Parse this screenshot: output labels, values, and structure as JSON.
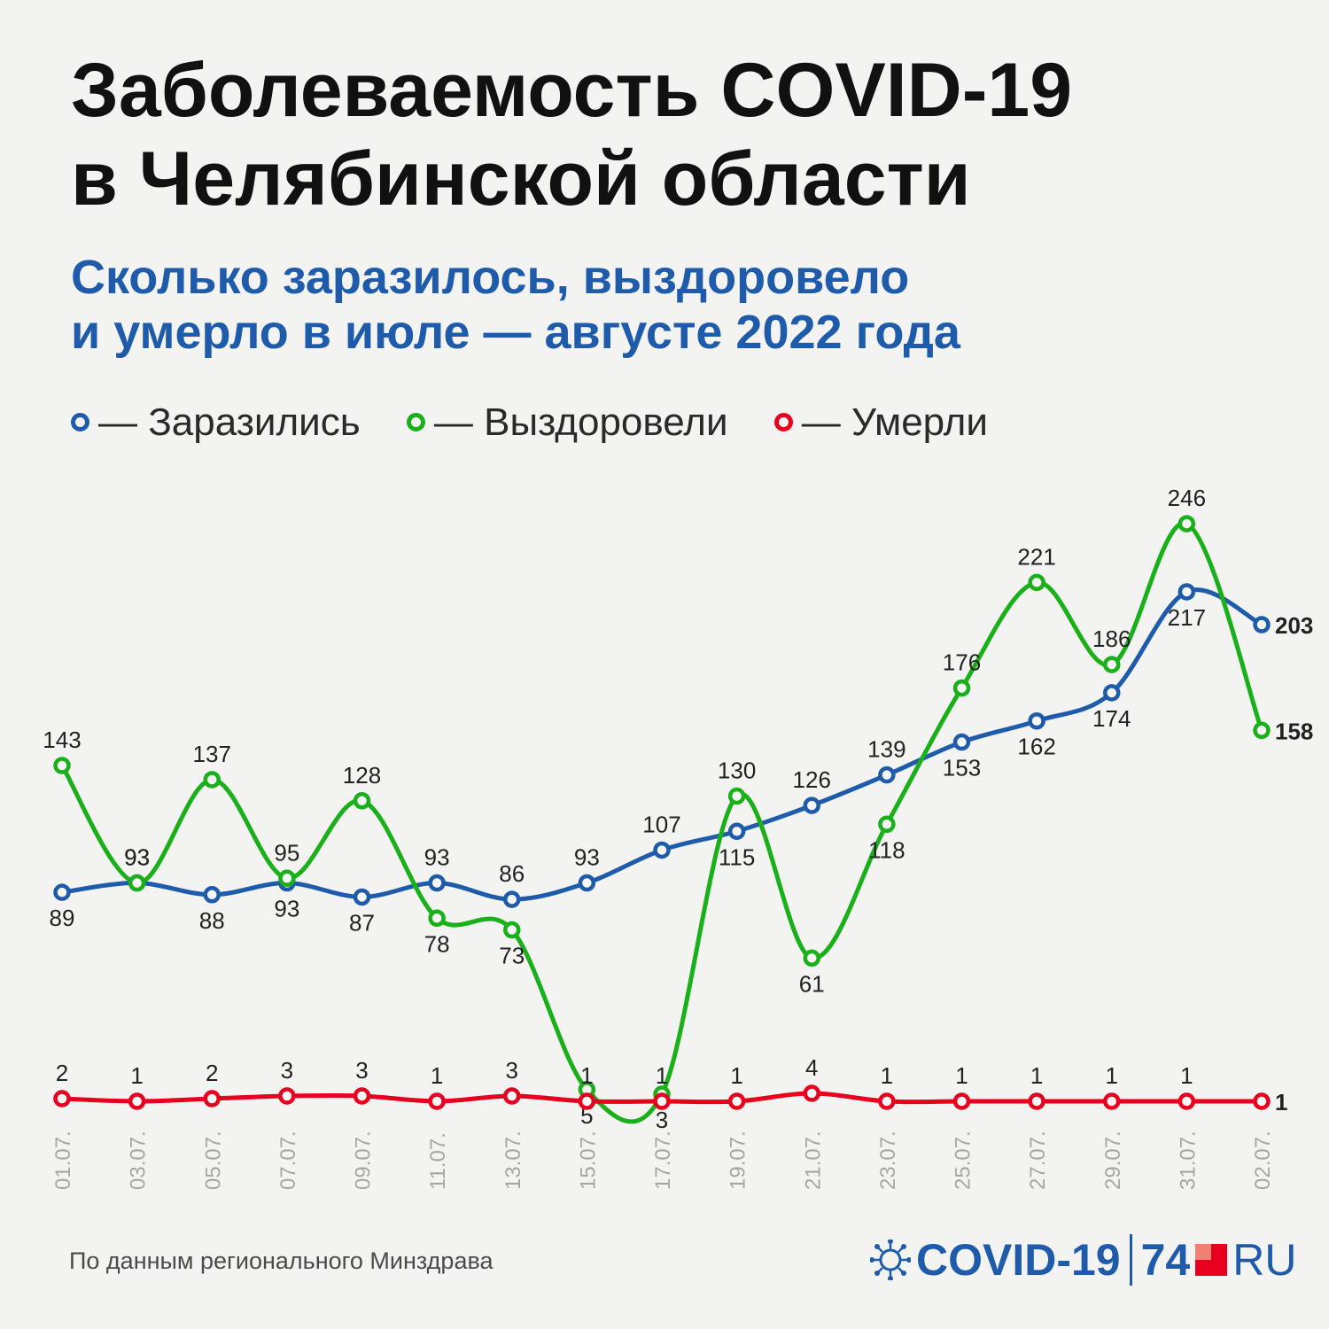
{
  "header": {
    "title_line1": "Заболеваемость COVID-19",
    "title_line2": "в Челябинской области",
    "subtitle_line1": "Сколько заразилось, выздоровело",
    "subtitle_line2": "и умерло в июле — августе 2022 года"
  },
  "legend": [
    {
      "label": "— Заразились",
      "color": "#1e5bab"
    },
    {
      "label": "— Выздоровели",
      "color": "#1ab01a"
    },
    {
      "label": "— Умерли",
      "color": "#e8001e"
    }
  ],
  "chart_data": {
    "type": "line",
    "x": [
      "01.07.",
      "03.07.",
      "05.07.",
      "07.07.",
      "09.07.",
      "11.07.",
      "13.07.",
      "15.07.",
      "17.07.",
      "19.07.",
      "21.07.",
      "23.07.",
      "25.07.",
      "27.07.",
      "29.07.",
      "31.07.",
      "02.07."
    ],
    "series": [
      {
        "name": "Заразились",
        "color": "#1e5bab",
        "values": [
          89,
          93,
          88,
          93,
          87,
          93,
          86,
          93,
          107,
          115,
          126,
          139,
          153,
          162,
          174,
          217,
          203
        ]
      },
      {
        "name": "Выздоровели",
        "color": "#1ab01a",
        "values": [
          143,
          93,
          137,
          95,
          128,
          78,
          73,
          5,
          3,
          130,
          61,
          118,
          176,
          221,
          186,
          246,
          158
        ]
      },
      {
        "name": "Умерли",
        "color": "#e8001e",
        "values": [
          2,
          1,
          2,
          3,
          3,
          1,
          3,
          1,
          1,
          1,
          4,
          1,
          1,
          1,
          1,
          1,
          1
        ]
      }
    ],
    "grid": false,
    "legend_position": "top-left"
  },
  "footer": {
    "source": "По данным регионального Минздрава",
    "logo_covid": "COVID-19",
    "logo_74": "74",
    "logo_ru": "RU"
  }
}
